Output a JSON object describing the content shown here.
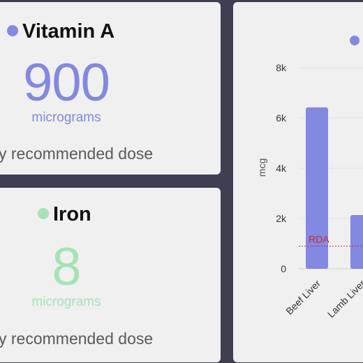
{
  "cards": [
    {
      "title": "Vitamin A",
      "value": "900",
      "unit": "micrograms",
      "caption": "y recommended dose",
      "color": "#8388e0"
    },
    {
      "title": "Iron",
      "value": "8",
      "unit": "micrograms",
      "caption": "y recommended dose",
      "color": "#a5e3b6"
    }
  ],
  "chart_data": {
    "type": "bar",
    "ylabel": "mcg",
    "yticks": [
      "0",
      "2k",
      "4k",
      "6k",
      "8k"
    ],
    "ylim": [
      0,
      8000
    ],
    "categories": [
      "Beef Liver",
      "Lamb Liver"
    ],
    "values": [
      6420,
      2140
    ],
    "bar_color": "#8388e0",
    "reference_line": {
      "label": "RDA",
      "value": 900,
      "color": "#c03030"
    },
    "grid": true
  }
}
